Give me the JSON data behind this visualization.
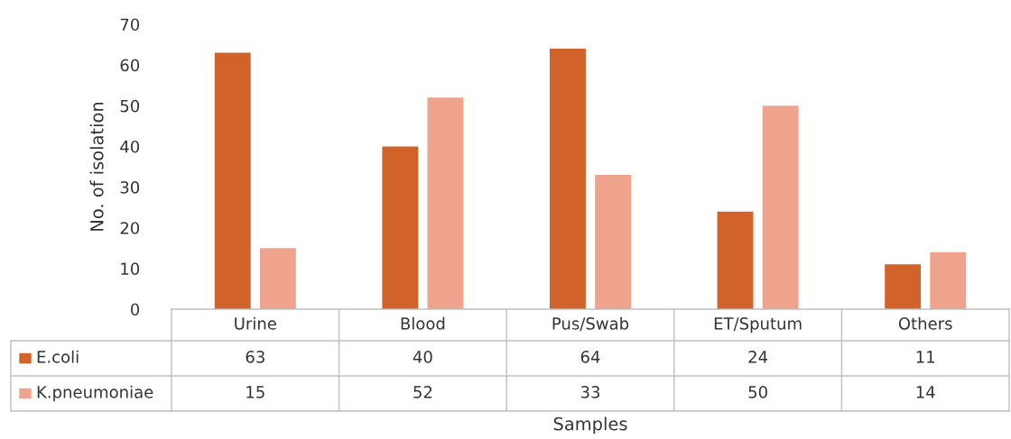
{
  "chart_data": {
    "type": "bar",
    "xlabel": "Samples",
    "ylabel": "No. of isolation",
    "categories": [
      "Urine",
      "Blood",
      "Pus/Swab",
      "ET/Sputum",
      "Others"
    ],
    "series": [
      {
        "name": "E.coli",
        "color": "#d0622a",
        "values": [
          63,
          40,
          64,
          24,
          11
        ]
      },
      {
        "name": "K.pneumoniae",
        "color": "#f0a38c",
        "values": [
          15,
          52,
          33,
          50,
          14
        ]
      }
    ],
    "ylim": [
      0,
      70
    ],
    "yticks": [
      0,
      10,
      20,
      30,
      40,
      50,
      60,
      70
    ],
    "grid": false,
    "data_labels": true,
    "legend": "bottom left"
  }
}
